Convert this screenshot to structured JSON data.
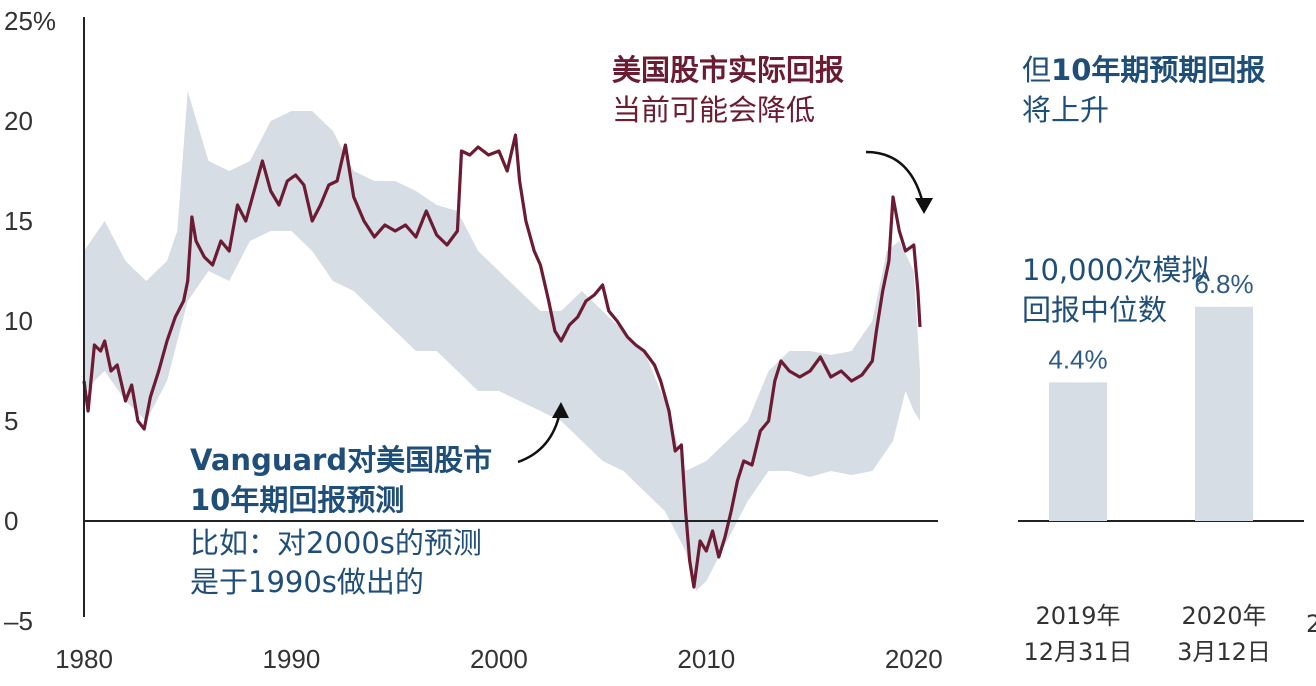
{
  "chart_data": [
    {
      "type": "line",
      "x_tick_labels": [
        "1980",
        "1990",
        "2000",
        "2010",
        "2020"
      ],
      "y_tick_labels": [
        "25%",
        "20",
        "15",
        "10",
        "5",
        "0",
        "–5"
      ],
      "xlim": [
        1980,
        2020.3
      ],
      "ylim": [
        -5,
        25
      ],
      "grid": false,
      "series": [
        {
          "role": "actual-10yr-return",
          "color": "#6b1b32",
          "points": [
            [
              1980.0,
              7.0
            ],
            [
              1980.2,
              5.5
            ],
            [
              1980.5,
              8.8
            ],
            [
              1980.8,
              8.5
            ],
            [
              1981.0,
              9.0
            ],
            [
              1981.3,
              7.5
            ],
            [
              1981.6,
              7.8
            ],
            [
              1982.0,
              6.0
            ],
            [
              1982.3,
              6.8
            ],
            [
              1982.6,
              5.0
            ],
            [
              1982.9,
              4.6
            ],
            [
              1983.2,
              6.2
            ],
            [
              1983.6,
              7.5
            ],
            [
              1984.0,
              9.0
            ],
            [
              1984.4,
              10.2
            ],
            [
              1984.8,
              11.0
            ],
            [
              1985.0,
              12.0
            ],
            [
              1985.2,
              15.2
            ],
            [
              1985.4,
              14.0
            ],
            [
              1985.8,
              13.2
            ],
            [
              1986.2,
              12.8
            ],
            [
              1986.6,
              14.0
            ],
            [
              1987.0,
              13.5
            ],
            [
              1987.4,
              15.8
            ],
            [
              1987.8,
              15.0
            ],
            [
              1988.2,
              16.5
            ],
            [
              1988.6,
              18.0
            ],
            [
              1989.0,
              16.5
            ],
            [
              1989.4,
              15.8
            ],
            [
              1989.8,
              17.0
            ],
            [
              1990.2,
              17.3
            ],
            [
              1990.6,
              16.8
            ],
            [
              1991.0,
              15.0
            ],
            [
              1991.4,
              15.8
            ],
            [
              1991.8,
              16.8
            ],
            [
              1992.2,
              17.0
            ],
            [
              1992.6,
              18.8
            ],
            [
              1993.0,
              16.2
            ],
            [
              1993.5,
              15.0
            ],
            [
              1994.0,
              14.2
            ],
            [
              1994.5,
              14.8
            ],
            [
              1995.0,
              14.5
            ],
            [
              1995.5,
              14.8
            ],
            [
              1996.0,
              14.2
            ],
            [
              1996.5,
              15.5
            ],
            [
              1997.0,
              14.3
            ],
            [
              1997.5,
              13.8
            ],
            [
              1998.0,
              14.5
            ],
            [
              1998.2,
              18.5
            ],
            [
              1998.6,
              18.3
            ],
            [
              1999.0,
              18.7
            ],
            [
              1999.5,
              18.3
            ],
            [
              2000.0,
              18.5
            ],
            [
              2000.4,
              17.5
            ],
            [
              2000.8,
              19.3
            ],
            [
              2001.0,
              17.0
            ],
            [
              2001.3,
              15.0
            ],
            [
              2001.7,
              13.5
            ],
            [
              2002.0,
              12.8
            ],
            [
              2002.4,
              11.0
            ],
            [
              2002.7,
              9.5
            ],
            [
              2003.0,
              9.0
            ],
            [
              2003.4,
              9.8
            ],
            [
              2003.8,
              10.2
            ],
            [
              2004.2,
              11.0
            ],
            [
              2004.6,
              11.3
            ],
            [
              2005.0,
              11.8
            ],
            [
              2005.3,
              10.5
            ],
            [
              2005.7,
              10.0
            ],
            [
              2006.2,
              9.2
            ],
            [
              2006.6,
              8.8
            ],
            [
              2007.0,
              8.5
            ],
            [
              2007.5,
              7.8
            ],
            [
              2007.8,
              7.0
            ],
            [
              2008.2,
              5.5
            ],
            [
              2008.5,
              3.5
            ],
            [
              2008.8,
              3.8
            ],
            [
              2009.0,
              0.5
            ],
            [
              2009.2,
              -2.0
            ],
            [
              2009.4,
              -3.3
            ],
            [
              2009.7,
              -1.0
            ],
            [
              2010.0,
              -1.5
            ],
            [
              2010.3,
              -0.5
            ],
            [
              2010.6,
              -1.8
            ],
            [
              2010.9,
              -0.8
            ],
            [
              2011.2,
              0.5
            ],
            [
              2011.5,
              2.0
            ],
            [
              2011.8,
              3.0
            ],
            [
              2012.2,
              2.8
            ],
            [
              2012.6,
              4.5
            ],
            [
              2013.0,
              5.0
            ],
            [
              2013.3,
              7.0
            ],
            [
              2013.6,
              8.0
            ],
            [
              2014.0,
              7.5
            ],
            [
              2014.5,
              7.2
            ],
            [
              2015.0,
              7.5
            ],
            [
              2015.5,
              8.2
            ],
            [
              2016.0,
              7.2
            ],
            [
              2016.5,
              7.5
            ],
            [
              2017.0,
              7.0
            ],
            [
              2017.5,
              7.3
            ],
            [
              2018.0,
              8.0
            ],
            [
              2018.2,
              9.5
            ],
            [
              2018.5,
              11.5
            ],
            [
              2018.8,
              13.0
            ],
            [
              2019.0,
              16.2
            ],
            [
              2019.3,
              14.5
            ],
            [
              2019.6,
              13.5
            ],
            [
              2020.0,
              13.8
            ],
            [
              2020.2,
              11.5
            ],
            [
              2020.3,
              9.7
            ]
          ]
        },
        {
          "role": "forecast-range-band",
          "color": "#d6dde5",
          "upper": [
            [
              1980.0,
              13.5
            ],
            [
              1981.0,
              15.0
            ],
            [
              1982.0,
              13.0
            ],
            [
              1983.0,
              12.0
            ],
            [
              1984.0,
              13.0
            ],
            [
              1984.5,
              14.5
            ],
            [
              1985.0,
              21.5
            ],
            [
              1986.0,
              18.0
            ],
            [
              1987.0,
              17.5
            ],
            [
              1988.0,
              18.0
            ],
            [
              1989.0,
              20.0
            ],
            [
              1990.0,
              20.5
            ],
            [
              1991.0,
              20.5
            ],
            [
              1992.0,
              19.5
            ],
            [
              1993.0,
              17.5
            ],
            [
              1994.0,
              17.0
            ],
            [
              1995.0,
              17.0
            ],
            [
              1996.0,
              16.5
            ],
            [
              1997.0,
              15.8
            ],
            [
              1998.0,
              15.5
            ],
            [
              1999.0,
              13.5
            ],
            [
              2000.0,
              12.5
            ],
            [
              2001.0,
              11.5
            ],
            [
              2002.0,
              10.5
            ],
            [
              2003.0,
              10.5
            ],
            [
              2004.0,
              11.5
            ],
            [
              2005.0,
              10.5
            ],
            [
              2006.0,
              9.5
            ],
            [
              2007.0,
              8.5
            ],
            [
              2008.0,
              6.0
            ],
            [
              2009.0,
              2.5
            ],
            [
              2010.0,
              3.0
            ],
            [
              2011.0,
              4.0
            ],
            [
              2012.0,
              5.0
            ],
            [
              2013.0,
              7.5
            ],
            [
              2014.0,
              8.5
            ],
            [
              2015.0,
              8.5
            ],
            [
              2016.0,
              8.3
            ],
            [
              2017.0,
              8.5
            ],
            [
              2018.0,
              10.0
            ],
            [
              2018.7,
              13.5
            ],
            [
              2019.3,
              14.0
            ],
            [
              2020.0,
              12.5
            ],
            [
              2020.3,
              7.5
            ]
          ],
          "lower": [
            [
              1980.0,
              6.5
            ],
            [
              1981.0,
              7.5
            ],
            [
              1982.0,
              6.0
            ],
            [
              1983.0,
              5.0
            ],
            [
              1984.0,
              7.0
            ],
            [
              1985.0,
              11.0
            ],
            [
              1986.0,
              12.5
            ],
            [
              1987.0,
              12.0
            ],
            [
              1988.0,
              14.0
            ],
            [
              1989.0,
              14.5
            ],
            [
              1990.0,
              14.5
            ],
            [
              1991.0,
              13.5
            ],
            [
              1992.0,
              12.0
            ],
            [
              1993.0,
              11.5
            ],
            [
              1994.0,
              10.5
            ],
            [
              1995.0,
              9.5
            ],
            [
              1996.0,
              8.5
            ],
            [
              1997.0,
              8.5
            ],
            [
              1998.0,
              7.5
            ],
            [
              1999.0,
              6.5
            ],
            [
              2000.0,
              6.5
            ],
            [
              2001.0,
              6.0
            ],
            [
              2002.0,
              5.5
            ],
            [
              2003.0,
              5.0
            ],
            [
              2004.0,
              4.0
            ],
            [
              2005.0,
              3.0
            ],
            [
              2006.0,
              2.5
            ],
            [
              2007.0,
              1.5
            ],
            [
              2008.0,
              0.5
            ],
            [
              2009.0,
              -1.5
            ],
            [
              2009.5,
              -3.5
            ],
            [
              2010.0,
              -3.0
            ],
            [
              2011.0,
              -1.0
            ],
            [
              2012.0,
              1.0
            ],
            [
              2013.0,
              2.5
            ],
            [
              2014.0,
              2.5
            ],
            [
              2015.0,
              2.2
            ],
            [
              2016.0,
              2.5
            ],
            [
              2017.0,
              2.3
            ],
            [
              2018.0,
              2.5
            ],
            [
              2019.0,
              4.0
            ],
            [
              2019.6,
              6.5
            ],
            [
              2020.0,
              5.5
            ],
            [
              2020.3,
              5.0
            ]
          ]
        }
      ]
    },
    {
      "type": "bar",
      "categories": [
        "2019年\n12月31日",
        "2020年\n3月12日"
      ],
      "values": [
        4.4,
        6.8
      ],
      "data_labels": [
        "4.4%",
        "6.8%"
      ],
      "color": "#d6dde5"
    }
  ],
  "annotations": {
    "top_title_line1": "美国股市实际回报",
    "top_title_line2": "当前可能会降低",
    "right_title_line1_part1": "但",
    "right_title_line1_bold": "10年期预期回报",
    "right_title_line2": "将上升",
    "right_sub_line1": "10,000次模拟",
    "right_sub_line2": "回报中位数",
    "left_bold_line1": "Vanguard对美国股市",
    "left_bold_line2": "10年期回报预测",
    "left_line3": "比如：对2000s的预测",
    "left_line4": "是于1990s做出的",
    "edge_fragment": "2"
  },
  "bar_dates": [
    {
      "line1": "2019年",
      "line2": "12月31日"
    },
    {
      "line1": "2020年",
      "line2": "3月12日"
    }
  ],
  "colors": {
    "actual_line": "#6b1b32",
    "band": "#d6dde5",
    "annotation_blue": "#1f4e79",
    "annotation_maroon": "#6b1b32",
    "axis": "#222222"
  }
}
